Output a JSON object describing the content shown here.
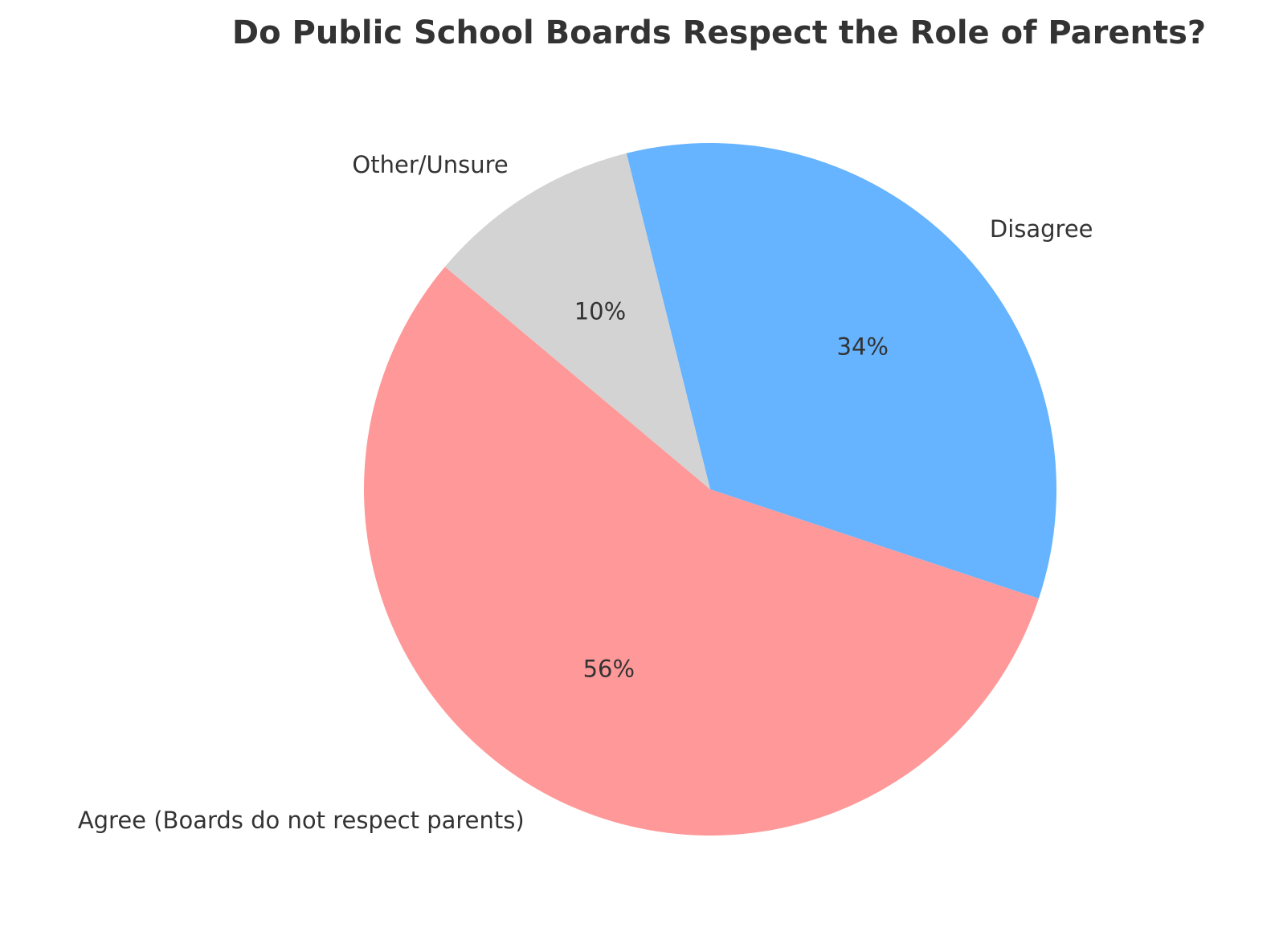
{
  "chart_data": {
    "type": "pie",
    "title": "Do Public School Boards Respect the Role of Parents?",
    "start_angle_deg": 140,
    "direction": "counterclockwise",
    "slices": [
      {
        "label": "Agree (Boards do not respect parents)",
        "value": 56,
        "pct_label": "56%",
        "color": "#ff9999"
      },
      {
        "label": "Disagree",
        "value": 34,
        "pct_label": "34%",
        "color": "#66b3ff"
      },
      {
        "label": "Other/Unsure",
        "value": 10,
        "pct_label": "10%",
        "color": "#d3d3d3"
      }
    ],
    "legend": "none"
  }
}
